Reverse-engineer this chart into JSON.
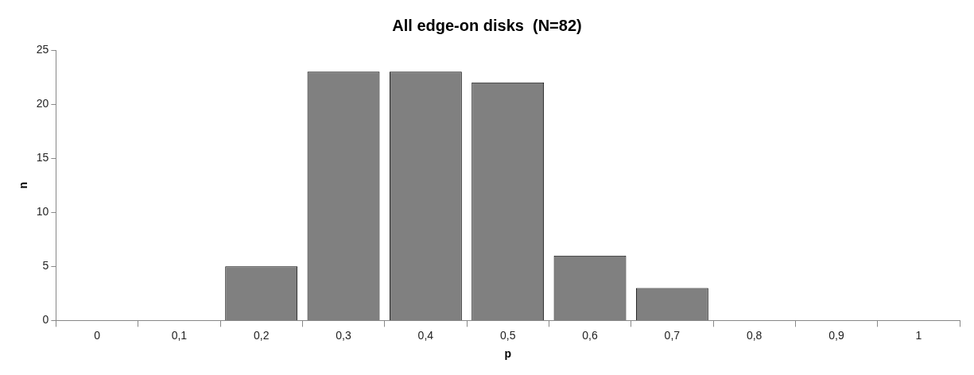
{
  "chart_data": {
    "type": "bar",
    "title": "All edge-on disks  (N=82)",
    "xlabel": "p",
    "ylabel": "n",
    "categories": [
      "0",
      "0,1",
      "0,2",
      "0,3",
      "0,4",
      "0,5",
      "0,6",
      "0,7",
      "0,8",
      "0,9",
      "1"
    ],
    "values": [
      0,
      0,
      5,
      23,
      23,
      22,
      6,
      3,
      0,
      0,
      0
    ],
    "color": "#808080",
    "ylim": [
      0,
      25
    ],
    "yticks": [
      0,
      5,
      10,
      15,
      20,
      25
    ],
    "grid": false,
    "legend": false
  }
}
